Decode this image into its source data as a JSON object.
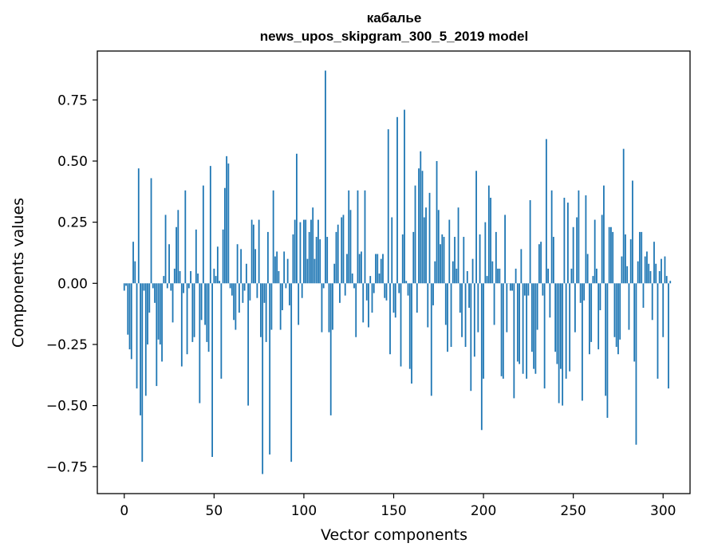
{
  "chart_data": {
    "type": "bar",
    "title": [
      "кабалье",
      "news_upos_skipgram_300_5_2019 model"
    ],
    "xlabel": "Vector components",
    "ylabel": "Components values",
    "xlim": [
      -15,
      315
    ],
    "ylim": [
      -0.86,
      0.95
    ],
    "xticks": [
      0,
      50,
      100,
      150,
      200,
      250,
      300
    ],
    "yticks": [
      -0.75,
      -0.5,
      -0.25,
      0.0,
      0.25,
      0.5,
      0.75
    ],
    "xtick_labels": [
      "0",
      "50",
      "100",
      "150",
      "200",
      "250",
      "300"
    ],
    "ytick_labels": [
      "−0.75",
      "−0.50",
      "−0.25",
      "0.00",
      "0.25",
      "0.50",
      "0.75"
    ],
    "bar_color": "#1f77b4",
    "values": [
      -0.03,
      -0.01,
      -0.21,
      -0.27,
      -0.31,
      0.17,
      0.09,
      -0.43,
      0.47,
      -0.54,
      -0.73,
      -0.03,
      -0.46,
      -0.25,
      -0.12,
      0.43,
      -0.02,
      -0.08,
      -0.42,
      -0.23,
      -0.25,
      -0.32,
      0.03,
      0.28,
      -0.02,
      0.16,
      -0.03,
      -0.16,
      0.06,
      0.23,
      0.3,
      0.05,
      -0.34,
      -0.04,
      0.38,
      -0.29,
      -0.02,
      0.05,
      -0.24,
      -0.22,
      0.22,
      0.04,
      -0.49,
      -0.15,
      0.4,
      -0.17,
      -0.24,
      -0.28,
      0.48,
      -0.71,
      0.06,
      0.03,
      0.15,
      0.01,
      -0.39,
      0.22,
      0.39,
      0.52,
      0.49,
      -0.02,
      -0.05,
      -0.15,
      -0.19,
      0.16,
      -0.12,
      0.14,
      -0.08,
      -0.03,
      0.08,
      -0.5,
      -0.07,
      0.26,
      0.24,
      0.14,
      -0.06,
      0.26,
      -0.22,
      -0.78,
      -0.08,
      -0.24,
      0.21,
      -0.7,
      -0.19,
      0.38,
      0.11,
      0.13,
      0.05,
      -0.19,
      -0.11,
      0.13,
      -0.02,
      0.1,
      -0.09,
      -0.73,
      0.2,
      0.26,
      0.53,
      -0.17,
      0.25,
      -0.06,
      0.26,
      0.26,
      0.1,
      0.21,
      0.26,
      0.31,
      0.1,
      0.19,
      0.26,
      0.18,
      -0.2,
      -0.02,
      0.87,
      0.19,
      -0.2,
      -0.54,
      -0.19,
      0.08,
      0.21,
      0.24,
      -0.08,
      0.27,
      0.28,
      -0.05,
      0.12,
      0.38,
      0.3,
      0.04,
      -0.02,
      -0.22,
      0.38,
      0.12,
      0.13,
      -0.16,
      0.38,
      -0.07,
      -0.18,
      0.03,
      -0.12,
      -0.04,
      0.12,
      0.12,
      0.04,
      0.1,
      0.12,
      -0.06,
      -0.07,
      0.63,
      -0.29,
      0.27,
      -0.12,
      -0.14,
      0.68,
      -0.04,
      -0.34,
      0.2,
      0.71,
      0.01,
      -0.05,
      -0.35,
      -0.41,
      0.21,
      0.4,
      -0.12,
      0.47,
      0.54,
      0.46,
      0.27,
      0.31,
      -0.18,
      0.37,
      -0.46,
      -0.09,
      0.09,
      0.5,
      0.3,
      0.16,
      0.2,
      0.19,
      -0.17,
      -0.28,
      0.26,
      -0.26,
      0.09,
      0.19,
      0.06,
      0.31,
      -0.12,
      -0.22,
      0.19,
      -0.26,
      0.05,
      -0.1,
      -0.44,
      0.1,
      -0.3,
      0.46,
      -0.2,
      0.2,
      -0.6,
      -0.39,
      0.25,
      0.03,
      0.4,
      0.35,
      0.09,
      -0.17,
      0.21,
      0.06,
      0.06,
      -0.38,
      -0.39,
      0.28,
      -0.2,
      0.0,
      -0.03,
      -0.03,
      -0.47,
      0.06,
      -0.32,
      -0.33,
      0.14,
      -0.37,
      -0.05,
      -0.39,
      -0.05,
      0.34,
      -0.28,
      -0.35,
      -0.37,
      -0.19,
      0.16,
      0.17,
      -0.05,
      -0.43,
      0.59,
      0.06,
      -0.14,
      0.38,
      0.19,
      -0.28,
      -0.33,
      -0.49,
      -0.35,
      -0.5,
      0.35,
      -0.39,
      0.33,
      -0.36,
      0.06,
      0.23,
      -0.2,
      0.27,
      0.38,
      -0.08,
      -0.48,
      -0.07,
      0.36,
      0.12,
      -0.29,
      -0.24,
      0.03,
      0.26,
      0.06,
      -0.27,
      -0.11,
      0.28,
      0.4,
      -0.46,
      -0.55,
      0.23,
      0.23,
      0.21,
      -0.22,
      -0.26,
      -0.29,
      -0.23,
      0.11,
      0.55,
      0.2,
      0.07,
      -0.19,
      0.18,
      0.42,
      -0.32,
      -0.66,
      0.09,
      0.21,
      0.21,
      -0.1,
      0.11,
      0.13,
      0.08,
      0.05,
      -0.15,
      0.17,
      0.08,
      -0.39,
      0.05,
      0.1,
      -0.22,
      0.11,
      0.03,
      -0.43,
      0.01
    ]
  }
}
